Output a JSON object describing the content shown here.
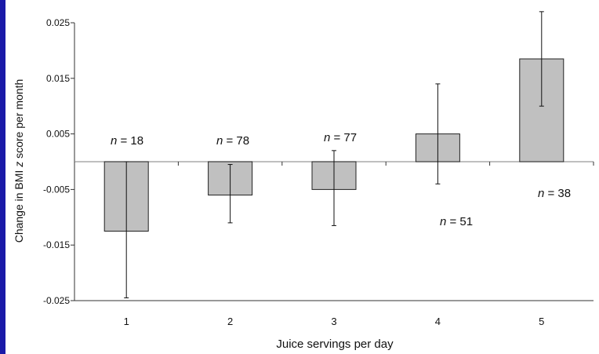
{
  "chart_data": {
    "type": "bar",
    "categories": [
      "1",
      "2",
      "3",
      "4",
      "5"
    ],
    "values": [
      -0.0125,
      -0.006,
      -0.005,
      0.005,
      0.0185
    ],
    "error_low": [
      -0.0245,
      -0.011,
      -0.0115,
      -0.004,
      0.01
    ],
    "error_high": [
      0.0,
      -0.0005,
      0.002,
      0.014,
      0.027
    ],
    "n_labels": [
      "18",
      "78",
      "77",
      "51",
      "38"
    ],
    "n_prefix": "n",
    "yticks": [
      "0.025",
      "0.015",
      "0.005",
      "-0.005",
      "-0.015",
      "-0.025"
    ],
    "ytick_values": [
      0.025,
      0.015,
      0.005,
      -0.005,
      -0.015,
      -0.025
    ],
    "ylim": [
      -0.025,
      0.025
    ],
    "xlabel": "Juice servings per day",
    "ylabel_pre": "Change in BMI ",
    "ylabel_italic": "z",
    "ylabel_post": " score per month",
    "grid": false,
    "colors": {
      "bar": "#c0c0c0",
      "axis": "#333333",
      "zero_line": "#999999",
      "frame": "#1a1aa8"
    }
  }
}
